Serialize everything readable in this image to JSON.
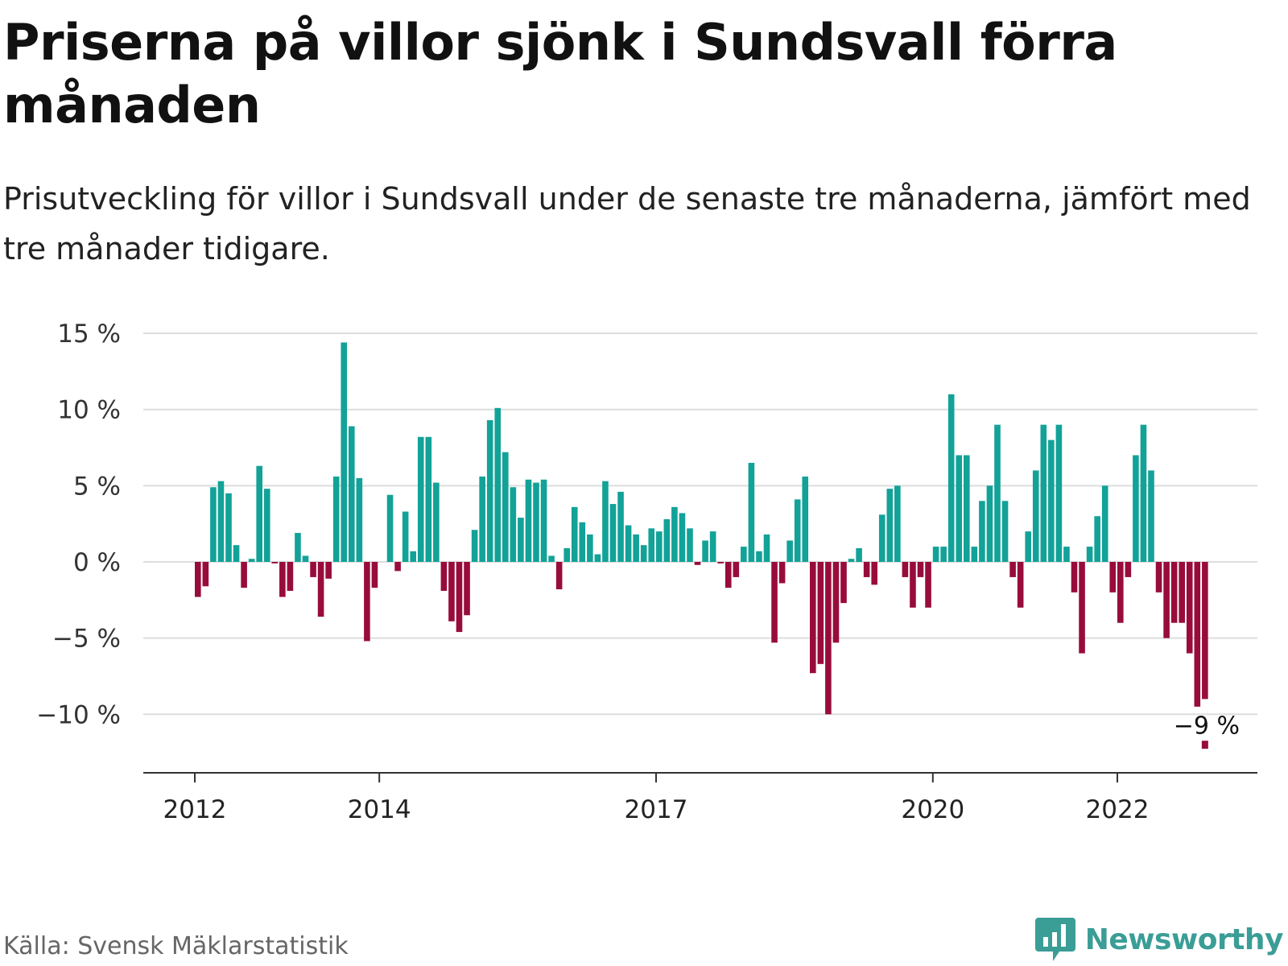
{
  "title": "Priserna på villor sjönk i Sundsvall förra månaden",
  "subtitle": "Prisutveckling för villor i Sundsvall under de senaste tre månaderna, jämfört med tre månader tidigare.",
  "source": "Källa: Svensk Mäklarstatistik",
  "brand": {
    "name": "Newsworthy",
    "icon": "newsworthy-chart-bubble-icon",
    "color": "#3a9d96"
  },
  "colors": {
    "positive": "#12a298",
    "negative": "#980c3c",
    "grid": "#dddddd",
    "axis": "#333333"
  },
  "chart_data": {
    "type": "bar",
    "x_ticks": [
      {
        "label": "2012",
        "index": 0
      },
      {
        "label": "2014",
        "index": 24
      },
      {
        "label": "2017",
        "index": 60
      },
      {
        "label": "2020",
        "index": 96
      },
      {
        "label": "2022",
        "index": 120
      }
    ],
    "y_ticks": [
      {
        "value": 15,
        "label": "15 %"
      },
      {
        "value": 10,
        "label": "10 %"
      },
      {
        "value": 5,
        "label": "5 %"
      },
      {
        "value": 0,
        "label": "0 %"
      },
      {
        "value": -5,
        "label": "−5 %"
      },
      {
        "value": -10,
        "label": "−10 %"
      }
    ],
    "ylim": [
      -13.5,
      15
    ],
    "grid": true,
    "values": [
      -2.3,
      -1.6,
      4.9,
      5.3,
      4.5,
      1.1,
      -1.7,
      0.2,
      6.3,
      4.8,
      -0.1,
      -2.3,
      -1.9,
      1.9,
      0.4,
      -1.0,
      -3.6,
      -1.1,
      5.6,
      14.4,
      8.9,
      5.5,
      -5.2,
      -1.7,
      0,
      4.4,
      -0.6,
      3.3,
      0.7,
      8.2,
      8.2,
      5.2,
      -1.9,
      -3.9,
      -4.6,
      -3.5,
      2.1,
      5.6,
      9.3,
      10.1,
      7.2,
      4.9,
      2.9,
      5.4,
      5.2,
      5.4,
      0.4,
      -1.8,
      0.9,
      3.6,
      2.6,
      1.8,
      0.5,
      5.3,
      3.8,
      4.6,
      2.4,
      1.8,
      1.1,
      2.2,
      2.0,
      2.8,
      3.6,
      3.2,
      2.2,
      -0.2,
      1.4,
      2.0,
      -0.1,
      -1.7,
      -1.0,
      1.0,
      6.5,
      0.7,
      1.8,
      -5.3,
      -1.4,
      1.4,
      4.1,
      5.6,
      -7.3,
      -6.7,
      -10.0,
      -5.3,
      -2.7,
      0.2,
      0.9,
      -1.0,
      -1.5,
      3.1,
      4.8,
      5.0,
      -1.0,
      -3.0,
      -1.0,
      -3.0,
      1.0,
      1.0,
      11.0,
      7.0,
      7.0,
      1.0,
      4.0,
      5.0,
      9.0,
      4.0,
      -1.0,
      -3.0,
      2.0,
      6.0,
      9.0,
      8.0,
      9.0,
      1.0,
      -2.0,
      -6.0,
      1.0,
      3.0,
      5.0,
      -2.0,
      -4.0,
      -1.0,
      7.0,
      9.0,
      6.0,
      -2.0,
      -5.0,
      -4.0,
      -4.0,
      -6.0,
      -9.5,
      -9.0
    ],
    "highlight": {
      "index": 131,
      "label": "−9 %",
      "marker_value": -12
    }
  }
}
